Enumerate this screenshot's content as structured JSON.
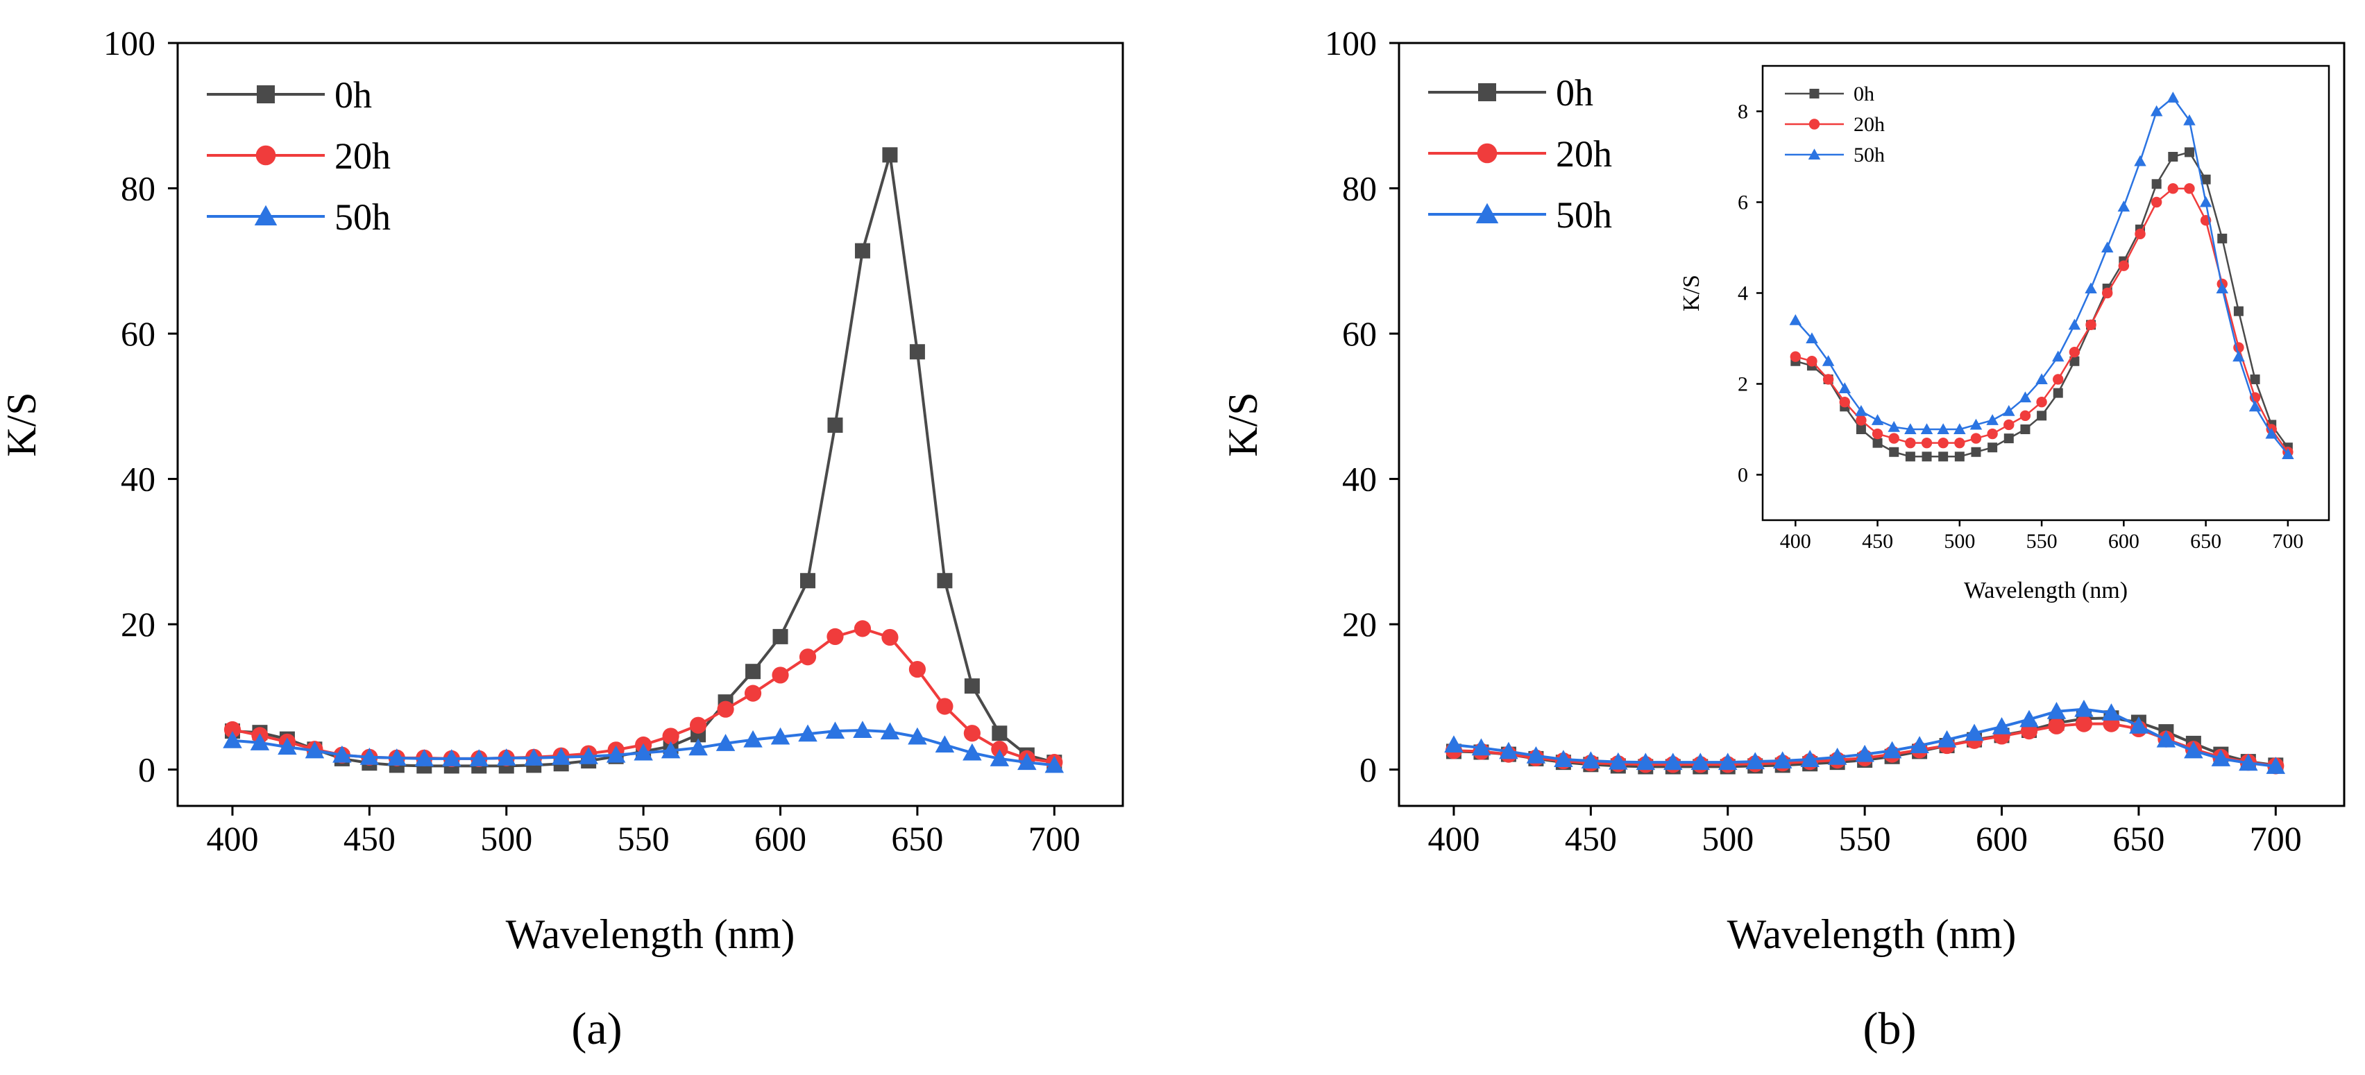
{
  "colors": {
    "0h": "#4a4a4a",
    "20h": "#f03c3c",
    "50h": "#2b74e2"
  },
  "chart_data": [
    {
      "type": "line",
      "panel_label": "(a)",
      "xlabel": "Wavelength (nm)",
      "ylabel": "K/S",
      "xlim": [
        380,
        725
      ],
      "ylim": [
        -5,
        100
      ],
      "xticks": [
        400,
        450,
        500,
        550,
        600,
        650,
        700
      ],
      "yticks": [
        0,
        20,
        40,
        60,
        80,
        100
      ],
      "legend_position": "top-left",
      "x": [
        400,
        410,
        420,
        430,
        440,
        450,
        460,
        470,
        480,
        490,
        500,
        510,
        520,
        530,
        540,
        550,
        560,
        570,
        580,
        590,
        600,
        610,
        620,
        630,
        640,
        650,
        660,
        670,
        680,
        690,
        700
      ],
      "series": [
        {
          "name": "0h",
          "marker": "square",
          "values": [
            5.3,
            5.1,
            4.2,
            2.8,
            1.5,
            0.9,
            0.6,
            0.5,
            0.5,
            0.5,
            0.5,
            0.6,
            0.8,
            1.2,
            1.8,
            2.5,
            3.2,
            4.8,
            9.3,
            13.5,
            18.3,
            26.0,
            47.4,
            71.4,
            84.6,
            57.5,
            26.0,
            11.5,
            5.0,
            2.0,
            1.0
          ]
        },
        {
          "name": "20h",
          "marker": "circle",
          "values": [
            5.5,
            4.7,
            3.8,
            2.8,
            2.0,
            1.7,
            1.6,
            1.6,
            1.5,
            1.5,
            1.6,
            1.7,
            1.9,
            2.2,
            2.7,
            3.4,
            4.6,
            6.1,
            8.3,
            10.5,
            13.0,
            15.5,
            18.3,
            19.4,
            18.2,
            13.8,
            8.7,
            5.0,
            2.8,
            1.5,
            1.0
          ]
        },
        {
          "name": "50h",
          "marker": "triangle",
          "values": [
            4.0,
            3.7,
            3.1,
            2.6,
            2.0,
            1.7,
            1.6,
            1.5,
            1.5,
            1.5,
            1.6,
            1.6,
            1.7,
            1.8,
            2.0,
            2.3,
            2.6,
            3.0,
            3.6,
            4.1,
            4.5,
            4.9,
            5.3,
            5.4,
            5.2,
            4.5,
            3.4,
            2.3,
            1.5,
            1.0,
            0.6
          ]
        }
      ]
    },
    {
      "type": "line",
      "panel_label": "(b)",
      "xlabel": "Wavelength (nm)",
      "ylabel": "K/S",
      "xlim": [
        380,
        725
      ],
      "ylim": [
        -5,
        100
      ],
      "xticks": [
        400,
        450,
        500,
        550,
        600,
        650,
        700
      ],
      "yticks": [
        0,
        20,
        40,
        60,
        80,
        100
      ],
      "legend_position": "top-left",
      "x": [
        400,
        410,
        420,
        430,
        440,
        450,
        460,
        470,
        480,
        490,
        500,
        510,
        520,
        530,
        540,
        550,
        560,
        570,
        580,
        590,
        600,
        610,
        620,
        630,
        640,
        650,
        660,
        670,
        680,
        690,
        700
      ],
      "series": [
        {
          "name": "0h",
          "marker": "square",
          "values": [
            2.5,
            2.4,
            2.1,
            1.5,
            1.0,
            0.7,
            0.5,
            0.4,
            0.4,
            0.4,
            0.4,
            0.5,
            0.6,
            0.8,
            1.0,
            1.3,
            1.8,
            2.5,
            3.3,
            4.1,
            4.7,
            5.4,
            6.4,
            7.0,
            7.1,
            6.5,
            5.2,
            3.6,
            2.1,
            1.1,
            0.6
          ]
        },
        {
          "name": "20h",
          "marker": "circle",
          "values": [
            2.6,
            2.5,
            2.1,
            1.6,
            1.2,
            0.9,
            0.8,
            0.7,
            0.7,
            0.7,
            0.7,
            0.8,
            0.9,
            1.1,
            1.3,
            1.6,
            2.1,
            2.7,
            3.3,
            4.0,
            4.6,
            5.3,
            6.0,
            6.3,
            6.3,
            5.6,
            4.2,
            2.8,
            1.7,
            1.0,
            0.5
          ]
        },
        {
          "name": "50h",
          "marker": "triangle",
          "values": [
            3.4,
            3.0,
            2.5,
            1.9,
            1.4,
            1.2,
            1.05,
            1.0,
            1.0,
            1.0,
            1.0,
            1.1,
            1.2,
            1.4,
            1.7,
            2.1,
            2.6,
            3.3,
            4.1,
            5.0,
            5.9,
            6.9,
            8.0,
            8.3,
            7.8,
            6.0,
            4.1,
            2.6,
            1.5,
            0.9,
            0.45
          ]
        }
      ],
      "inset": {
        "xlabel": "Wavelength (nm)",
        "ylabel": "K/S",
        "xlim": [
          380,
          725
        ],
        "ylim": [
          -1,
          9
        ],
        "xticks": [
          400,
          450,
          500,
          550,
          600,
          650,
          700
        ],
        "yticks": [
          0,
          2,
          4,
          6,
          8
        ],
        "legend_position": "top-left"
      }
    }
  ]
}
